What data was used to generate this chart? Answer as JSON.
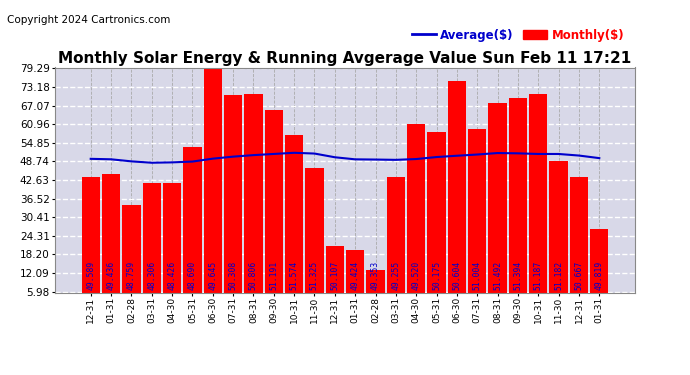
{
  "title": "Monthly Solar Energy & Running Avgerage Value Sun Feb 11 17:21",
  "copyright": "Copyright 2024 Cartronics.com",
  "bar_color": "#ff0000",
  "avg_line_color": "#0000cc",
  "background_color": "#ffffff",
  "plot_bg_color": "#d8d8e8",
  "grid_color_h": "#ffffff",
  "grid_color_v": "#aaaaaa",
  "categories": [
    "12-31",
    "01-31",
    "02-28",
    "03-31",
    "04-30",
    "05-31",
    "06-30",
    "07-31",
    "08-31",
    "09-30",
    "10-31",
    "11-30",
    "12-31",
    "01-31",
    "02-28",
    "03-31",
    "04-30",
    "05-31",
    "06-30",
    "07-31",
    "08-31",
    "09-30",
    "10-31",
    "11-30",
    "12-31",
    "01-31"
  ],
  "monthly_values": [
    43.5,
    44.5,
    34.5,
    41.5,
    41.5,
    53.5,
    79.29,
    70.5,
    71.0,
    65.5,
    57.5,
    46.5,
    21.0,
    19.5,
    13.0,
    43.5,
    60.96,
    58.5,
    75.0,
    59.5,
    68.0,
    69.5,
    71.0,
    49.0,
    43.5,
    26.5
  ],
  "avg_values": [
    49.589,
    49.436,
    48.759,
    48.306,
    48.426,
    48.69,
    49.645,
    50.308,
    50.806,
    51.191,
    51.574,
    51.325,
    50.107,
    49.424,
    49.353,
    49.255,
    49.52,
    50.175,
    50.604,
    51.004,
    51.492,
    51.394,
    51.187,
    51.182,
    50.667,
    49.819
  ],
  "ytick_labels": [
    "5.98",
    "12.09",
    "18.20",
    "24.31",
    "30.41",
    "36.52",
    "42.63",
    "48.74",
    "54.85",
    "60.96",
    "67.07",
    "73.18",
    "79.29"
  ],
  "ytick_values": [
    5.98,
    12.09,
    18.2,
    24.31,
    30.41,
    36.52,
    42.63,
    48.74,
    54.85,
    60.96,
    67.07,
    73.18,
    79.29
  ],
  "ymin": 5.98,
  "ymax": 79.29,
  "bar_label_color": "#0000cc",
  "bar_label_fontsize": 5.8,
  "title_fontsize": 11,
  "copyright_fontsize": 7.5,
  "legend_fontsize": 8.5
}
